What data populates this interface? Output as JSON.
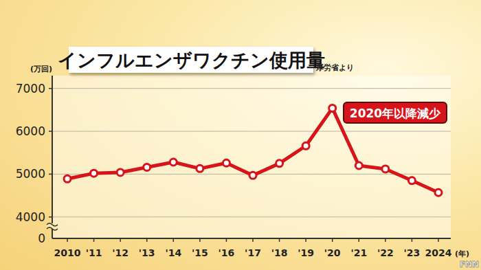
{
  "chart_data": {
    "type": "line",
    "title": "インフルエンザワクチン使用量",
    "source": "厚労省より",
    "y_label": "(万回)",
    "x_label": "(年)",
    "annotation": "2020年以降減少",
    "logo": "FNN",
    "y_break_label": "0",
    "categories": [
      "2010",
      "'11",
      "'12",
      "'13",
      "'14",
      "'15",
      "'16",
      "'17",
      "'18",
      "'19",
      "'20",
      "'21",
      "'22",
      "'23",
      "2024"
    ],
    "values": [
      4890,
      5020,
      5040,
      5160,
      5280,
      5130,
      5260,
      4970,
      5250,
      5660,
      6540,
      5200,
      5120,
      4850,
      4570
    ],
    "color": "#d7141a",
    "marker": "circle",
    "ylim": [
      3500,
      7300
    ],
    "yticks": [
      4000,
      5000,
      6000,
      7000
    ],
    "grid": true
  }
}
